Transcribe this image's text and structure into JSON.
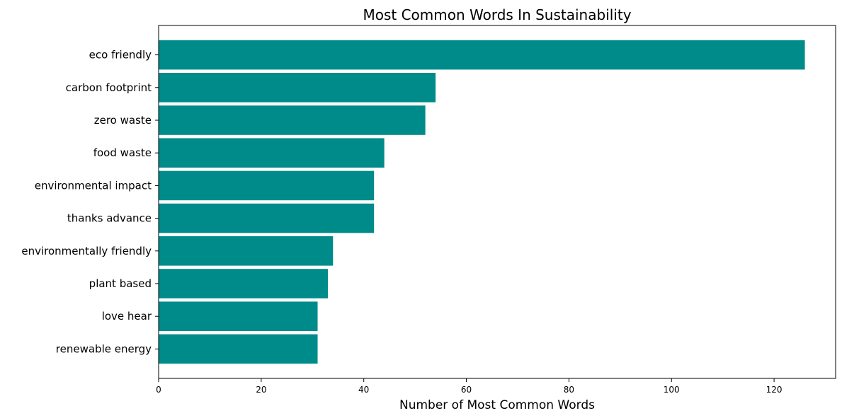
{
  "chart_data": {
    "type": "bar",
    "orientation": "horizontal",
    "title": "Most Common Words In Sustainability",
    "xlabel": "Number of Most Common Words",
    "ylabel": "",
    "categories": [
      "eco friendly",
      "carbon footprint",
      "zero waste",
      "food waste",
      "environmental impact",
      "thanks advance",
      "environmentally friendly",
      "plant based",
      "love hear",
      "renewable energy"
    ],
    "values": [
      126,
      54,
      52,
      44,
      42,
      42,
      34,
      33,
      31,
      31
    ],
    "xlim": [
      0,
      132
    ],
    "xticks": [
      0,
      20,
      40,
      60,
      80,
      100,
      120
    ],
    "bar_color": "#008b8b",
    "grid": false,
    "legend": "none"
  }
}
